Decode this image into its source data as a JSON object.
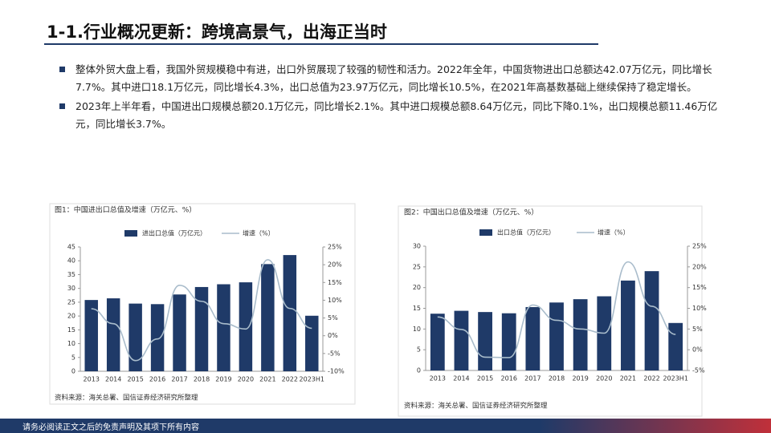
{
  "header": {
    "title": "1-1.行业概况更新：跨境高景气，出海正当时"
  },
  "bullets": [
    "整体外贸大盘上看，我国外贸规模稳中有进，出口外贸展现了较强的韧性和活力。2022年全年，中国货物进出口总额达42.07万亿元，同比增长7.7%。其中进口18.1万亿元，同比增长4.3%，出口总值为23.97万亿元，同比增长10.5%，在2021年高基数基础上继续保持了稳定增长。",
    "2023年上半年看，中国进出口规模总额20.1万亿元，同比增长2.1%。其中进口规模总额8.64万亿元，同比下降0.1%，出口规模总额11.46万亿元，同比增长3.7%。"
  ],
  "chart_data": [
    {
      "type": "bar-line",
      "title": "图1：中国进出口总值及增速（万亿元、%）",
      "source": "资料来源：海关总署、国信证券经济研究所整理",
      "categories": [
        "2013",
        "2014",
        "2015",
        "2016",
        "2017",
        "2018",
        "2019",
        "2020",
        "2021",
        "2022",
        "2023H1"
      ],
      "series": [
        {
          "name": "进出口总值（万亿元）",
          "color": "#1f3a68",
          "values": [
            25.8,
            26.4,
            24.5,
            24.3,
            27.8,
            30.5,
            31.5,
            32.2,
            38.8,
            42.07,
            20.1
          ]
        },
        {
          "name": "增速（%）",
          "color": "#a9bccb",
          "axis": "y2",
          "values": [
            7.6,
            3.4,
            -7.0,
            -0.9,
            14.2,
            9.7,
            3.4,
            1.9,
            21.4,
            7.7,
            2.1
          ]
        }
      ],
      "ylim": [
        0,
        45
      ],
      "yticks": [
        0,
        5,
        10,
        15,
        20,
        25,
        30,
        35,
        40,
        45
      ],
      "y2lim": [
        -10,
        25
      ],
      "y2ticks": [
        {
          "value": -10,
          "label": "-10%"
        },
        {
          "value": -5,
          "label": "-5%"
        },
        {
          "value": 0,
          "label": "0%"
        },
        {
          "value": 5,
          "label": "5%"
        },
        {
          "value": 10,
          "label": "10%"
        },
        {
          "value": 15,
          "label": "15%"
        },
        {
          "value": 20,
          "label": "20%"
        },
        {
          "value": 25,
          "label": "25%"
        }
      ],
      "grid": false
    },
    {
      "type": "bar-line",
      "title": "图2：中国出口总值及增速（万亿元、%）",
      "source": "资料来源：海关总署、国信证券经济研究所整理",
      "categories": [
        "2013",
        "2014",
        "2015",
        "2016",
        "2017",
        "2018",
        "2019",
        "2020",
        "2021",
        "2022",
        "2023H1"
      ],
      "series": [
        {
          "name": "出口总值（万亿元）",
          "color": "#1f3a68",
          "values": [
            13.7,
            14.4,
            14.1,
            13.8,
            15.3,
            16.4,
            17.2,
            17.9,
            21.7,
            23.97,
            11.46
          ]
        },
        {
          "name": "增速（%）",
          "color": "#a9bccb",
          "axis": "y2",
          "values": [
            7.9,
            4.9,
            -1.8,
            -1.9,
            10.8,
            7.1,
            5.0,
            4.0,
            21.2,
            10.5,
            3.7
          ]
        }
      ],
      "ylim": [
        0,
        30
      ],
      "yticks": [
        0,
        5,
        10,
        15,
        20,
        25,
        30
      ],
      "y2lim": [
        -5,
        25
      ],
      "y2ticks": [
        {
          "value": -5,
          "label": "-5%"
        },
        {
          "value": 0,
          "label": "0%"
        },
        {
          "value": 5,
          "label": "5%"
        },
        {
          "value": 10,
          "label": "10%"
        },
        {
          "value": 15,
          "label": "15%"
        },
        {
          "value": 20,
          "label": "20%"
        },
        {
          "value": 25,
          "label": "25%"
        }
      ],
      "grid": false
    }
  ],
  "footer": {
    "text": "请务必阅读正文之后的免责声明及其项下所有内容"
  }
}
